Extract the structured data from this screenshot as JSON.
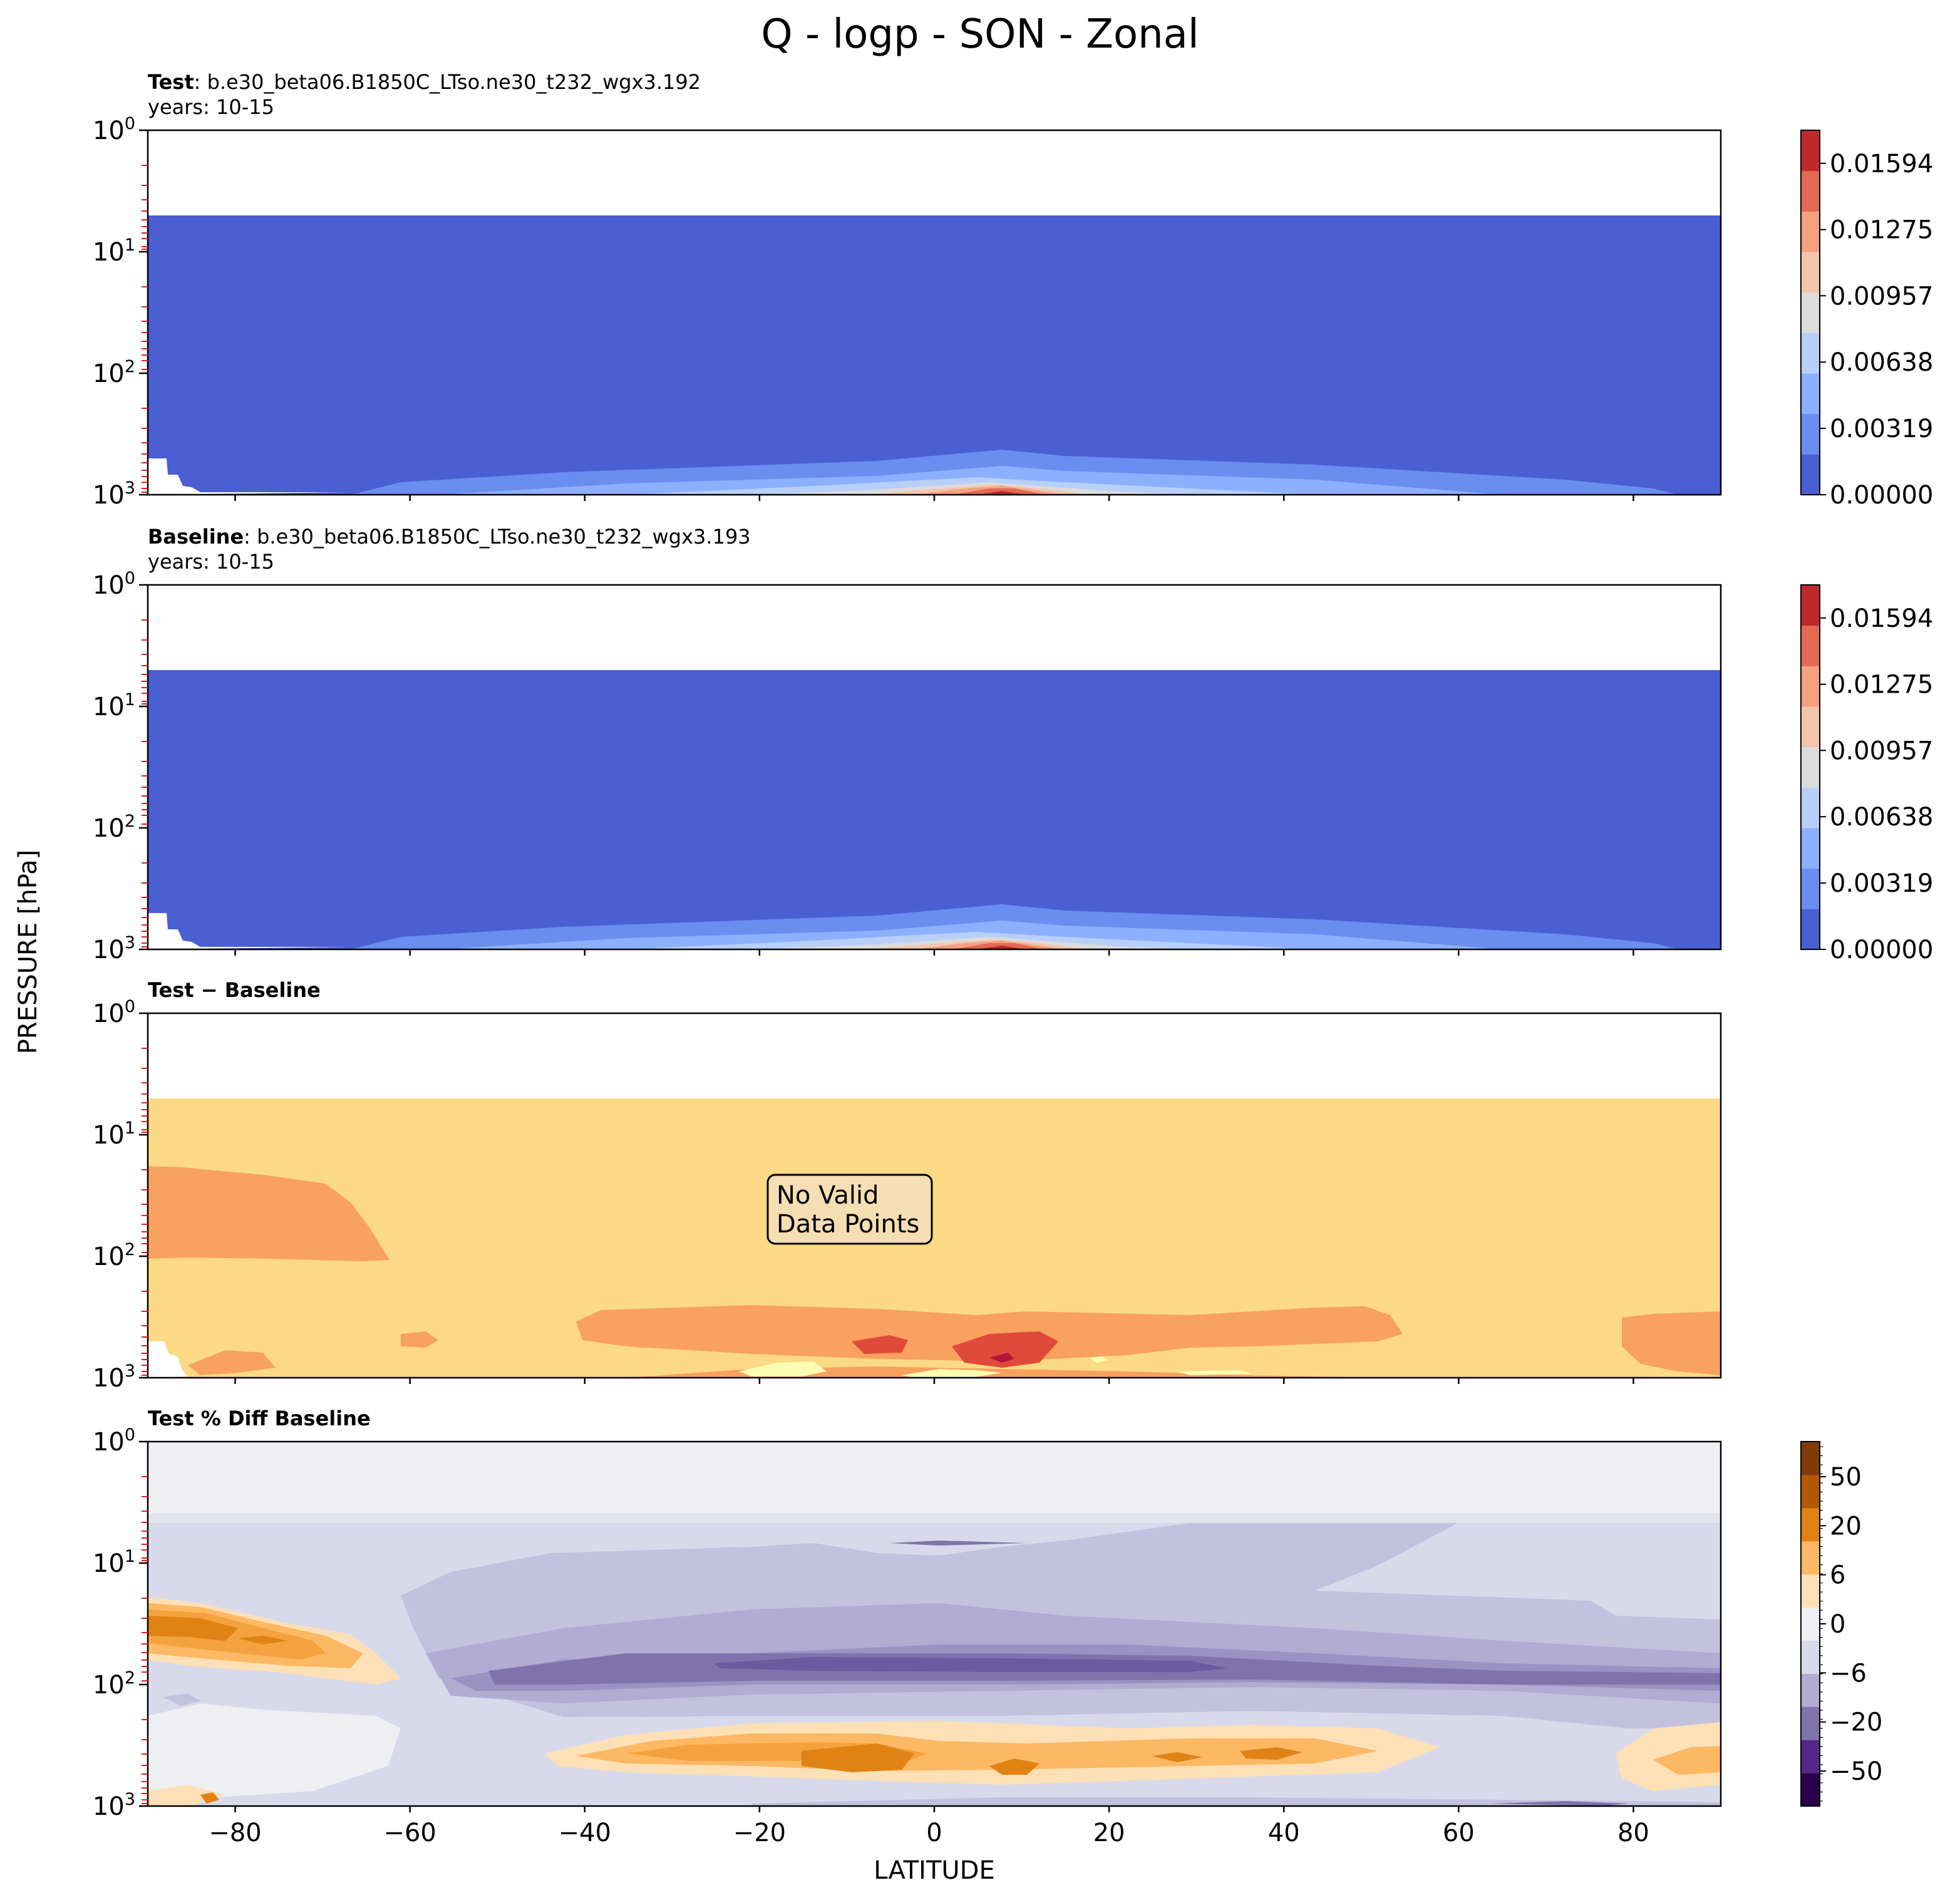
{
  "figure": {
    "title": "Q - logp - SON - Zonal",
    "xlabel": "LATITUDE",
    "ylabel": "PRESSURE [hPa]"
  },
  "colors": {
    "test_levels": [
      "#4a5fd1",
      "#6a8df0",
      "#8db0fe",
      "#b8cff8",
      "#dddcdc",
      "#f4c5ab",
      "#f5a081",
      "#e26952",
      "#c0282c"
    ],
    "diff_fill": "#fcd985",
    "diff_levels": [
      "#fdfdb2",
      "#fcd985",
      "#f9a15f",
      "#e04a3a",
      "#b1153a"
    ],
    "pct_levels": [
      "#2d004b",
      "#542788",
      "#8073ac",
      "#b2abd2",
      "#d8daeb",
      "#eeeef3",
      "#fee0b6",
      "#fdb863",
      "#e08214",
      "#b35806",
      "#7f3b08"
    ]
  },
  "chart_data": [
    {
      "type": "heatmap",
      "title_bold": "Test",
      "title_text": ": b.e30_beta06.B1850C_LTso.ne30_t232_wgx3.192",
      "years": "years: 10-15",
      "x_range": [
        -90,
        90
      ],
      "x_ticks": [
        -80,
        -60,
        -40,
        -20,
        0,
        20,
        40,
        60,
        80
      ],
      "y_scale": "log",
      "y_range": [
        1000,
        1
      ],
      "y_ticks": [
        {
          "base": "10",
          "exp": "0"
        },
        {
          "base": "10",
          "exp": "1"
        },
        {
          "base": "10",
          "exp": "2"
        },
        {
          "base": "10",
          "exp": "3"
        }
      ],
      "colorbar": {
        "labels": [
          "0.01594",
          "0.01275",
          "0.00957",
          "0.00638",
          "0.00319",
          "0.00000"
        ],
        "values": [
          0.01594,
          0.01275,
          0.00957,
          0.00638,
          0.00319,
          0.0
        ],
        "range": [
          0.0,
          0.01753
        ]
      }
    },
    {
      "type": "heatmap",
      "title_bold": "Baseline",
      "title_text": ": b.e30_beta06.B1850C_LTso.ne30_t232_wgx3.193",
      "years": "years: 10-15",
      "x_range": [
        -90,
        90
      ],
      "x_ticks": [
        -80,
        -60,
        -40,
        -20,
        0,
        20,
        40,
        60,
        80
      ],
      "y_scale": "log",
      "y_range": [
        1000,
        1
      ],
      "y_ticks": [
        {
          "base": "10",
          "exp": "0"
        },
        {
          "base": "10",
          "exp": "1"
        },
        {
          "base": "10",
          "exp": "2"
        },
        {
          "base": "10",
          "exp": "3"
        }
      ],
      "colorbar": {
        "labels": [
          "0.01594",
          "0.01275",
          "0.00957",
          "0.00638",
          "0.00319",
          "0.00000"
        ],
        "values": [
          0.01594,
          0.01275,
          0.00957,
          0.00638,
          0.00319,
          0.0
        ],
        "range": [
          0.0,
          0.01753
        ]
      }
    },
    {
      "type": "heatmap",
      "title_bold": "Test − Baseline",
      "note": [
        "No Valid",
        "Data Points"
      ],
      "x_range": [
        -90,
        90
      ],
      "x_ticks": [
        -80,
        -60,
        -40,
        -20,
        0,
        20,
        40,
        60,
        80
      ],
      "y_scale": "log",
      "y_range": [
        1000,
        1
      ],
      "y_ticks": [
        {
          "base": "10",
          "exp": "0"
        },
        {
          "base": "10",
          "exp": "1"
        },
        {
          "base": "10",
          "exp": "2"
        },
        {
          "base": "10",
          "exp": "3"
        }
      ]
    },
    {
      "type": "heatmap",
      "title_bold": "Test % Diff Baseline",
      "x_range": [
        -90,
        90
      ],
      "x_ticks": [
        -80,
        -60,
        -40,
        -20,
        0,
        20,
        40,
        60,
        80
      ],
      "x_tick_labels": [
        "−80",
        "−60",
        "−40",
        "−20",
        "0",
        "20",
        "40",
        "60",
        "80"
      ],
      "y_scale": "log",
      "y_range": [
        1000,
        1
      ],
      "y_ticks": [
        {
          "base": "10",
          "exp": "0"
        },
        {
          "base": "10",
          "exp": "1"
        },
        {
          "base": "10",
          "exp": "2"
        },
        {
          "base": "10",
          "exp": "3"
        }
      ],
      "colorbar": {
        "labels": [
          "50",
          "20",
          "6",
          "0",
          "−6",
          "−20",
          "−50"
        ],
        "values": [
          50,
          20,
          6,
          0,
          -6,
          -20,
          -50
        ]
      }
    }
  ]
}
